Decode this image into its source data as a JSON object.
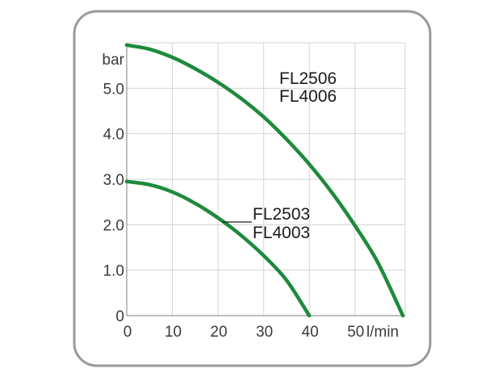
{
  "chart_data": {
    "type": "line",
    "title": "",
    "xlabel": "l/min",
    "ylabel": "bar",
    "xlim": [
      0,
      61
    ],
    "ylim": [
      0,
      6
    ],
    "xticks": [
      0,
      10,
      20,
      30,
      40,
      50
    ],
    "xtick_labels": [
      "0",
      "10",
      "20",
      "30",
      "40",
      "50"
    ],
    "yticks": [
      0,
      1,
      2,
      3,
      4,
      5
    ],
    "ytick_labels": [
      "0",
      "1.0",
      "2.0",
      "3.0",
      "4.0",
      "5.0"
    ],
    "grid": true,
    "line_color": "#1e8a3c",
    "series": [
      {
        "name": "FL2506 FL4006",
        "label_lines": [
          "FL2506",
          "FL4006"
        ],
        "x": [
          0,
          5,
          10,
          15,
          20,
          25,
          30,
          35,
          40,
          45,
          50,
          55,
          60.5
        ],
        "y": [
          5.95,
          5.86,
          5.68,
          5.43,
          5.13,
          4.78,
          4.37,
          3.88,
          3.33,
          2.7,
          1.98,
          1.17,
          0
        ]
      },
      {
        "name": "FL2503 FL4003",
        "label_lines": [
          "FL2503",
          "FL4003"
        ],
        "x": [
          0,
          5,
          10,
          15,
          20,
          25,
          30,
          35,
          40
        ],
        "y": [
          2.95,
          2.88,
          2.72,
          2.47,
          2.15,
          1.77,
          1.32,
          0.78,
          0
        ]
      }
    ]
  }
}
